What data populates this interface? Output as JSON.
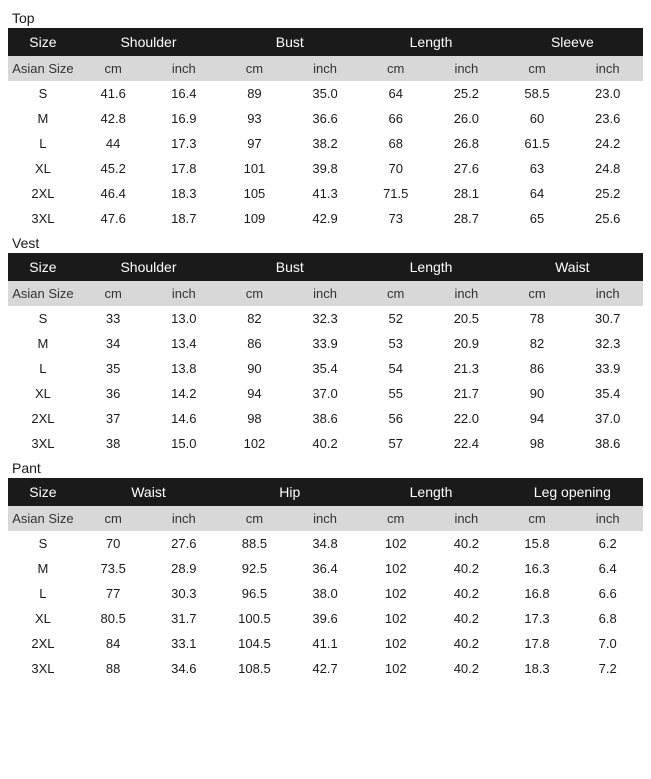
{
  "sub_header_size": "Asian Size",
  "unit_cm": "cm",
  "unit_inch": "inch",
  "sections": [
    {
      "title": "Top",
      "columns": [
        "Size",
        "Shoulder",
        "Bust",
        "Length",
        "Sleeve"
      ],
      "rows": [
        [
          "S",
          "41.6",
          "16.4",
          "89",
          "35.0",
          "64",
          "25.2",
          "58.5",
          "23.0"
        ],
        [
          "M",
          "42.8",
          "16.9",
          "93",
          "36.6",
          "66",
          "26.0",
          "60",
          "23.6"
        ],
        [
          "L",
          "44",
          "17.3",
          "97",
          "38.2",
          "68",
          "26.8",
          "61.5",
          "24.2"
        ],
        [
          "XL",
          "45.2",
          "17.8",
          "101",
          "39.8",
          "70",
          "27.6",
          "63",
          "24.8"
        ],
        [
          "2XL",
          "46.4",
          "18.3",
          "105",
          "41.3",
          "71.5",
          "28.1",
          "64",
          "25.2"
        ],
        [
          "3XL",
          "47.6",
          "18.7",
          "109",
          "42.9",
          "73",
          "28.7",
          "65",
          "25.6"
        ]
      ]
    },
    {
      "title": "Vest",
      "columns": [
        "Size",
        "Shoulder",
        "Bust",
        "Length",
        "Waist"
      ],
      "rows": [
        [
          "S",
          "33",
          "13.0",
          "82",
          "32.3",
          "52",
          "20.5",
          "78",
          "30.7"
        ],
        [
          "M",
          "34",
          "13.4",
          "86",
          "33.9",
          "53",
          "20.9",
          "82",
          "32.3"
        ],
        [
          "L",
          "35",
          "13.8",
          "90",
          "35.4",
          "54",
          "21.3",
          "86",
          "33.9"
        ],
        [
          "XL",
          "36",
          "14.2",
          "94",
          "37.0",
          "55",
          "21.7",
          "90",
          "35.4"
        ],
        [
          "2XL",
          "37",
          "14.6",
          "98",
          "38.6",
          "56",
          "22.0",
          "94",
          "37.0"
        ],
        [
          "3XL",
          "38",
          "15.0",
          "102",
          "40.2",
          "57",
          "22.4",
          "98",
          "38.6"
        ]
      ]
    },
    {
      "title": "Pant",
      "columns": [
        "Size",
        "Waist",
        "Hip",
        "Length",
        "Leg opening"
      ],
      "rows": [
        [
          "S",
          "70",
          "27.6",
          "88.5",
          "34.8",
          "102",
          "40.2",
          "15.8",
          "6.2"
        ],
        [
          "M",
          "73.5",
          "28.9",
          "92.5",
          "36.4",
          "102",
          "40.2",
          "16.3",
          "6.4"
        ],
        [
          "L",
          "77",
          "30.3",
          "96.5",
          "38.0",
          "102",
          "40.2",
          "16.8",
          "6.6"
        ],
        [
          "XL",
          "80.5",
          "31.7",
          "100.5",
          "39.6",
          "102",
          "40.2",
          "17.3",
          "6.8"
        ],
        [
          "2XL",
          "84",
          "33.1",
          "104.5",
          "41.1",
          "102",
          "40.2",
          "17.8",
          "7.0"
        ],
        [
          "3XL",
          "88",
          "34.6",
          "108.5",
          "42.7",
          "102",
          "40.2",
          "18.3",
          "7.2"
        ]
      ]
    }
  ]
}
